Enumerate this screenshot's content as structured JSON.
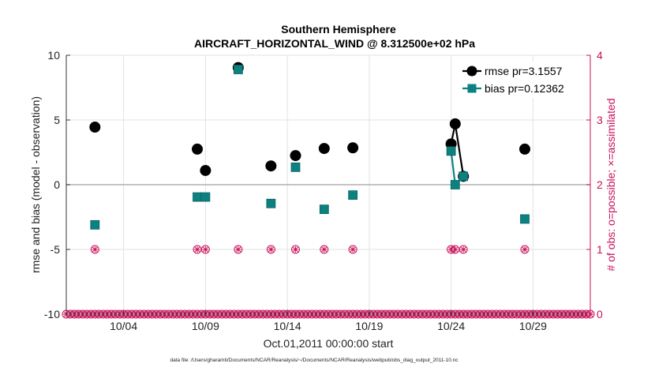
{
  "chart_data": {
    "type": "scatter",
    "title": "Southern Hemisphere",
    "subtitle": "AIRCRAFT_HORIZONTAL_WIND @ 8.312500e+02 hPa",
    "xlabel": "Oct.01,2011 00:00:00 start",
    "ylabel": "rmse and bias (model - observation)",
    "y2label": "# of obs: o=possible; ×=assimilated",
    "footnote": "data file: /Users/gharamti/Documents/NCAR/Reanalysis/~/Documents/NCAR/Reanalysis/webpub/obs_diag_output_2011-10.nc",
    "xlim": [
      0.5,
      32.5
    ],
    "ylim": [
      -10,
      10
    ],
    "y2lim": [
      0,
      4
    ],
    "grid": true,
    "legend_position": "top-right",
    "x_ticks": [
      {
        "value": 4,
        "label": "10/04"
      },
      {
        "value": 9,
        "label": "10/09"
      },
      {
        "value": 14,
        "label": "10/14"
      },
      {
        "value": 19,
        "label": "10/19"
      },
      {
        "value": 24,
        "label": "10/24"
      },
      {
        "value": 29,
        "label": "10/29"
      }
    ],
    "y_ticks": [
      {
        "value": -10,
        "label": "-10"
      },
      {
        "value": -5,
        "label": "-5"
      },
      {
        "value": 0,
        "label": "0"
      },
      {
        "value": 5,
        "label": "5"
      },
      {
        "value": 10,
        "label": "10"
      }
    ],
    "y2_ticks": [
      {
        "value": 0,
        "label": "0"
      },
      {
        "value": 1,
        "label": "1"
      },
      {
        "value": 2,
        "label": "2"
      },
      {
        "value": 3,
        "label": "3"
      },
      {
        "value": 4,
        "label": "4"
      }
    ],
    "series": [
      {
        "name": "rmse pr=3.1557",
        "color": "#000000",
        "marker": "circle",
        "points": [
          [
            2.25,
            4.45
          ],
          [
            8.5,
            2.75
          ],
          [
            9.0,
            1.1
          ],
          [
            11.0,
            9.05
          ],
          [
            13.0,
            1.45
          ],
          [
            14.5,
            2.25
          ],
          [
            16.25,
            2.8
          ],
          [
            18.0,
            2.85
          ],
          [
            24.0,
            3.15
          ],
          [
            24.25,
            4.7
          ],
          [
            24.75,
            0.65
          ],
          [
            28.5,
            2.75
          ]
        ],
        "segments": [
          [
            24.0,
            24.25
          ],
          [
            24.25,
            24.75
          ]
        ]
      },
      {
        "name": "bias pr=0.12362",
        "color": "#0d8080",
        "marker": "square",
        "points": [
          [
            2.25,
            -3.1
          ],
          [
            8.5,
            -0.95
          ],
          [
            9.0,
            -0.95
          ],
          [
            11.0,
            8.9
          ],
          [
            13.0,
            -1.45
          ],
          [
            14.5,
            1.35
          ],
          [
            16.25,
            -1.9
          ],
          [
            18.0,
            -0.8
          ],
          [
            24.0,
            2.6
          ],
          [
            24.25,
            0.0
          ],
          [
            24.75,
            0.65
          ],
          [
            28.5,
            -2.65
          ]
        ],
        "segments": [
          [
            24.0,
            24.25
          ],
          [
            24.25,
            24.75
          ]
        ]
      }
    ],
    "obs_count": {
      "name": "# of obs",
      "color": "#c8125a",
      "one_at": [
        2.25,
        8.5,
        9.0,
        11.0,
        13.0,
        14.5,
        16.25,
        18.0,
        24.0,
        24.25,
        24.75,
        28.5
      ],
      "zero_from": 0.5,
      "zero_to": 32.5,
      "zero_step": 0.25
    }
  }
}
